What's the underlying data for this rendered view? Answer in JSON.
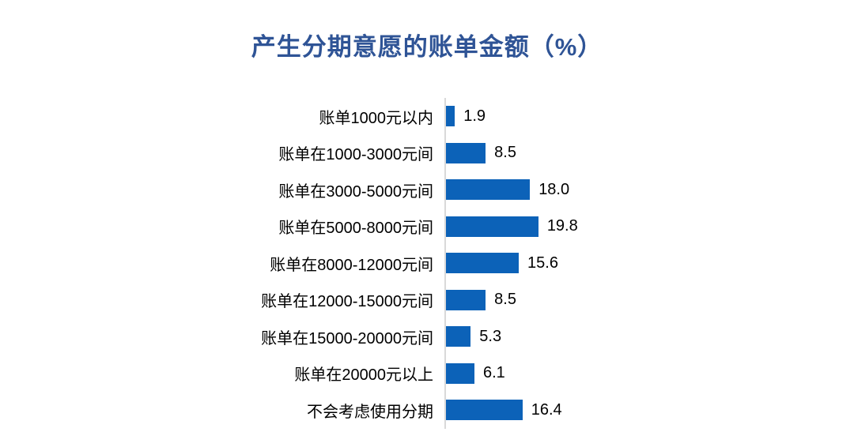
{
  "title": "产生分期意愿的账单金额（%）",
  "chart_data": {
    "type": "bar",
    "orientation": "horizontal",
    "title": "产生分期意愿的账单金额（%）",
    "categories": [
      "账单1000元以内",
      "账单在1000-3000元间",
      "账单在3000-5000元间",
      "账单在5000-8000元间",
      "账单在8000-12000元间",
      "账单在12000-15000元间",
      "账单在15000-20000元间",
      "账单在20000元以上",
      "不会考虑使用分期"
    ],
    "values": [
      1.9,
      8.5,
      18.0,
      19.8,
      15.6,
      8.5,
      5.3,
      6.1,
      16.4
    ],
    "value_labels": [
      "1.9",
      "8.5",
      "18.0",
      "19.8",
      "15.6",
      "8.5",
      "5.3",
      "6.1",
      "16.4"
    ],
    "xlabel": "",
    "ylabel": "",
    "xlim": [
      0,
      22
    ],
    "grid": false,
    "legend": false,
    "data_labels_position": "outside-end",
    "colors": {
      "bar": "#0C62B8",
      "title": "#2F5496",
      "axis_line": "#D9D9D9",
      "text": "#000000",
      "background": "#FFFFFF"
    }
  }
}
